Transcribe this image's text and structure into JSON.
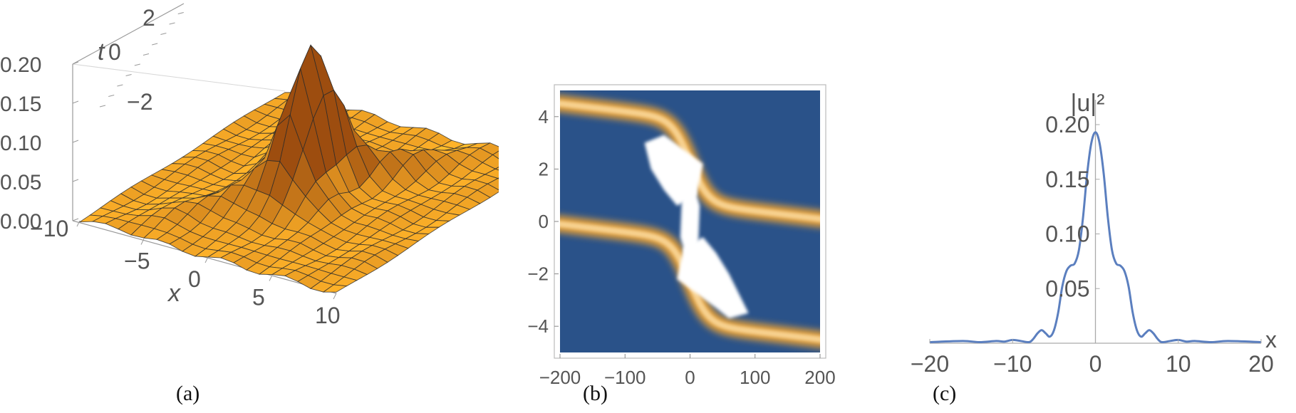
{
  "chart_data": [
    {
      "type": "surface",
      "panel_label": "(a)",
      "xlabel": "x",
      "ylabel": "t",
      "zlabel": "",
      "x_ticks": [
        -10,
        -5,
        0,
        5,
        10
      ],
      "t_ticks": [
        -2,
        0,
        2
      ],
      "z_ticks": [
        0.0,
        0.05,
        0.1,
        0.15,
        0.2
      ],
      "x_tick_labels": [
        "−10",
        "−5",
        "0",
        "5",
        "10"
      ],
      "t_tick_labels": [
        "−2",
        "0",
        "2"
      ],
      "z_tick_labels": [
        "0.00",
        "0.05",
        "0.10",
        "0.15",
        "0.20"
      ],
      "xlim": [
        -10,
        10
      ],
      "tlim": [
        -3,
        3
      ],
      "zlim": [
        0,
        0.2
      ],
      "peak": {
        "x": 0,
        "t": 0,
        "z": 0.19
      },
      "colors": {
        "surface": "#f5a623",
        "mesh": "#2b2b2b"
      }
    },
    {
      "type": "heatmap",
      "panel_label": "(b)",
      "xlabel": "",
      "ylabel": "",
      "x_ticks": [
        -200,
        -100,
        0,
        100,
        200
      ],
      "y_ticks": [
        -4,
        -2,
        0,
        2,
        4
      ],
      "x_tick_labels": [
        "−200",
        "−100",
        "0",
        "100",
        "200"
      ],
      "y_tick_labels": [
        "−4",
        "−2",
        "0",
        "2",
        "4"
      ],
      "xlim": [
        -200,
        200
      ],
      "ylim": [
        -5,
        5
      ],
      "colors": {
        "background": "#2a5289",
        "band": "#f3a530",
        "core": "#ffffff"
      }
    },
    {
      "type": "line",
      "panel_label": "(c)",
      "xlabel": "x",
      "ylabel": "|u|²",
      "xlim": [
        -20,
        20
      ],
      "ylim": [
        0,
        0.2
      ],
      "x_ticks": [
        -20,
        -10,
        0,
        10,
        20
      ],
      "y_ticks": [
        0.05,
        0.1,
        0.15,
        0.2
      ],
      "x_tick_labels": [
        "−20",
        "−10",
        "0",
        "10",
        "20"
      ],
      "y_tick_labels": [
        "0.05",
        "0.10",
        "0.15",
        "0.20"
      ],
      "series": [
        {
          "color": "#5b7fbf",
          "x": [
            -20,
            -16,
            -14,
            -12,
            -11,
            -10,
            -9,
            -8,
            -7.5,
            -7,
            -6.5,
            -6,
            -5.5,
            -5,
            -4.5,
            -4,
            -3.5,
            -3,
            -2.5,
            -2,
            -1.5,
            -1,
            -0.5,
            0,
            0.5,
            1,
            1.5,
            2,
            2.5,
            3,
            3.5,
            4,
            4.5,
            5,
            5.5,
            6,
            6.5,
            7,
            7.5,
            8,
            9,
            10,
            11,
            12,
            14,
            16,
            20
          ],
          "y": [
            0.001,
            0.002,
            0.001,
            0.002,
            0.0015,
            0.003,
            0.002,
            0.001,
            0.004,
            0.009,
            0.012,
            0.009,
            0.006,
            0.012,
            0.028,
            0.052,
            0.066,
            0.071,
            0.073,
            0.085,
            0.115,
            0.155,
            0.183,
            0.193,
            0.183,
            0.155,
            0.115,
            0.085,
            0.073,
            0.071,
            0.066,
            0.052,
            0.028,
            0.012,
            0.006,
            0.009,
            0.012,
            0.009,
            0.004,
            0.001,
            0.002,
            0.003,
            0.0015,
            0.002,
            0.001,
            0.002,
            0.001
          ]
        }
      ]
    }
  ]
}
